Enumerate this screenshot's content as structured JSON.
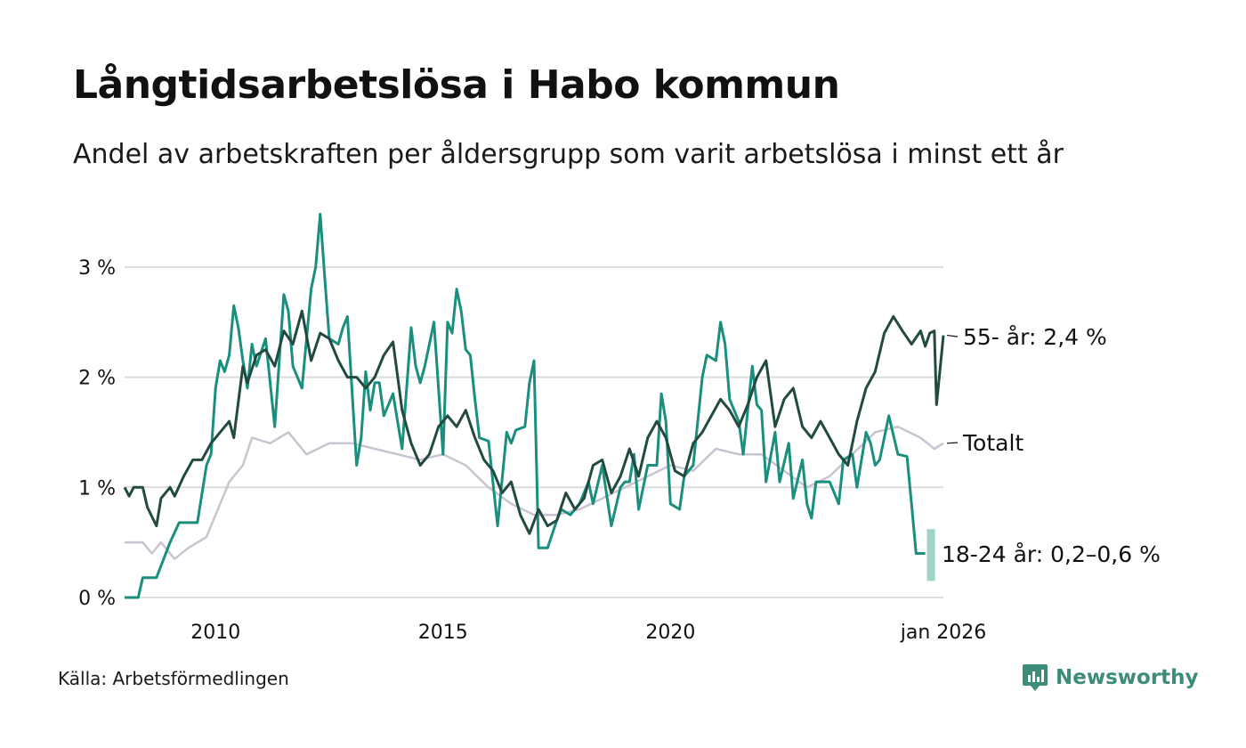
{
  "title": "Långtidsarbetslösa i Habo kommun",
  "subtitle": "Andel av arbetskraften per åldersgrupp som varit arbetslösa i minst ett år",
  "source": "Källa: Arbetsförmedlingen",
  "brand": {
    "name": "Newsworthy",
    "icon": "newsworthy-logo-icon"
  },
  "colors": {
    "dark": "#224a40",
    "teal": "#1a8f7e",
    "grey": "#c9c4d1",
    "band": "#9fd3c8",
    "grid": "#dcdcdc"
  },
  "chart_data": {
    "type": "line",
    "title": "Långtidsarbetslösa i Habo kommun",
    "xlabel": "",
    "ylabel": "",
    "ylim": [
      0,
      3.5
    ],
    "xlim": [
      2008.0,
      2026.0
    ],
    "y_ticks": [
      0,
      1,
      2,
      3
    ],
    "y_tick_labels": [
      "0 %",
      "1 %",
      "2 %",
      "3 %"
    ],
    "x_ticks": [
      2010,
      2015,
      2020,
      2026.0
    ],
    "x_tick_labels": [
      "2010",
      "2015",
      "2020",
      "jan 2026"
    ],
    "grid": true,
    "series": [
      {
        "name": "Totalt",
        "label": "Totalt",
        "color": "#c9c4d1",
        "points": [
          [
            2008.0,
            0.5
          ],
          [
            2008.4,
            0.5
          ],
          [
            2008.6,
            0.4
          ],
          [
            2008.8,
            0.5
          ],
          [
            2009.1,
            0.35
          ],
          [
            2009.4,
            0.45
          ],
          [
            2009.8,
            0.55
          ],
          [
            2010.0,
            0.75
          ],
          [
            2010.3,
            1.05
          ],
          [
            2010.6,
            1.2
          ],
          [
            2010.8,
            1.45
          ],
          [
            2011.2,
            1.4
          ],
          [
            2011.6,
            1.5
          ],
          [
            2012.0,
            1.3
          ],
          [
            2012.5,
            1.4
          ],
          [
            2013.0,
            1.4
          ],
          [
            2013.5,
            1.35
          ],
          [
            2014.0,
            1.3
          ],
          [
            2014.5,
            1.25
          ],
          [
            2015.0,
            1.3
          ],
          [
            2015.5,
            1.2
          ],
          [
            2016.0,
            1.0
          ],
          [
            2016.5,
            0.85
          ],
          [
            2017.0,
            0.75
          ],
          [
            2017.5,
            0.75
          ],
          [
            2018.0,
            0.8
          ],
          [
            2018.5,
            0.9
          ],
          [
            2019.0,
            1.0
          ],
          [
            2019.5,
            1.1
          ],
          [
            2020.0,
            1.2
          ],
          [
            2020.5,
            1.15
          ],
          [
            2021.0,
            1.35
          ],
          [
            2021.5,
            1.3
          ],
          [
            2022.0,
            1.3
          ],
          [
            2022.5,
            1.15
          ],
          [
            2023.0,
            1.0
          ],
          [
            2023.5,
            1.1
          ],
          [
            2024.0,
            1.3
          ],
          [
            2024.5,
            1.5
          ],
          [
            2025.0,
            1.55
          ],
          [
            2025.5,
            1.45
          ],
          [
            2025.8,
            1.35
          ],
          [
            2026.0,
            1.4
          ]
        ]
      },
      {
        "name": "55- år",
        "label": "55- år: 2,4 %",
        "color": "#224a40",
        "points": [
          [
            2008.0,
            1.0
          ],
          [
            2008.1,
            0.92
          ],
          [
            2008.2,
            1.0
          ],
          [
            2008.4,
            1.0
          ],
          [
            2008.5,
            0.82
          ],
          [
            2008.7,
            0.65
          ],
          [
            2008.8,
            0.9
          ],
          [
            2009.0,
            1.0
          ],
          [
            2009.1,
            0.92
          ],
          [
            2009.3,
            1.1
          ],
          [
            2009.5,
            1.25
          ],
          [
            2009.7,
            1.25
          ],
          [
            2009.9,
            1.4
          ],
          [
            2010.1,
            1.5
          ],
          [
            2010.3,
            1.6
          ],
          [
            2010.4,
            1.45
          ],
          [
            2010.6,
            2.1
          ],
          [
            2010.7,
            1.95
          ],
          [
            2010.9,
            2.2
          ],
          [
            2011.1,
            2.25
          ],
          [
            2011.3,
            2.1
          ],
          [
            2011.5,
            2.42
          ],
          [
            2011.7,
            2.3
          ],
          [
            2011.9,
            2.6
          ],
          [
            2012.1,
            2.15
          ],
          [
            2012.3,
            2.4
          ],
          [
            2012.5,
            2.35
          ],
          [
            2012.7,
            2.15
          ],
          [
            2012.9,
            2.0
          ],
          [
            2013.1,
            2.0
          ],
          [
            2013.3,
            1.9
          ],
          [
            2013.5,
            2.0
          ],
          [
            2013.7,
            2.2
          ],
          [
            2013.9,
            2.32
          ],
          [
            2014.1,
            1.7
          ],
          [
            2014.3,
            1.4
          ],
          [
            2014.5,
            1.2
          ],
          [
            2014.7,
            1.3
          ],
          [
            2014.9,
            1.55
          ],
          [
            2015.1,
            1.65
          ],
          [
            2015.3,
            1.55
          ],
          [
            2015.5,
            1.7
          ],
          [
            2015.7,
            1.45
          ],
          [
            2015.9,
            1.25
          ],
          [
            2016.1,
            1.15
          ],
          [
            2016.3,
            0.95
          ],
          [
            2016.5,
            1.05
          ],
          [
            2016.7,
            0.75
          ],
          [
            2016.9,
            0.58
          ],
          [
            2017.1,
            0.8
          ],
          [
            2017.3,
            0.65
          ],
          [
            2017.5,
            0.7
          ],
          [
            2017.7,
            0.95
          ],
          [
            2017.9,
            0.8
          ],
          [
            2018.1,
            0.9
          ],
          [
            2018.3,
            1.2
          ],
          [
            2018.5,
            1.25
          ],
          [
            2018.7,
            0.95
          ],
          [
            2018.9,
            1.1
          ],
          [
            2019.1,
            1.35
          ],
          [
            2019.3,
            1.1
          ],
          [
            2019.5,
            1.45
          ],
          [
            2019.7,
            1.6
          ],
          [
            2019.9,
            1.45
          ],
          [
            2020.1,
            1.15
          ],
          [
            2020.3,
            1.1
          ],
          [
            2020.5,
            1.4
          ],
          [
            2020.7,
            1.5
          ],
          [
            2020.9,
            1.65
          ],
          [
            2021.1,
            1.8
          ],
          [
            2021.3,
            1.7
          ],
          [
            2021.5,
            1.55
          ],
          [
            2021.7,
            1.75
          ],
          [
            2021.9,
            2.0
          ],
          [
            2022.1,
            2.15
          ],
          [
            2022.3,
            1.55
          ],
          [
            2022.5,
            1.8
          ],
          [
            2022.7,
            1.9
          ],
          [
            2022.9,
            1.55
          ],
          [
            2023.1,
            1.45
          ],
          [
            2023.3,
            1.6
          ],
          [
            2023.5,
            1.45
          ],
          [
            2023.7,
            1.3
          ],
          [
            2023.9,
            1.2
          ],
          [
            2024.1,
            1.6
          ],
          [
            2024.3,
            1.9
          ],
          [
            2024.5,
            2.05
          ],
          [
            2024.7,
            2.4
          ],
          [
            2024.9,
            2.55
          ],
          [
            2025.1,
            2.42
          ],
          [
            2025.3,
            2.3
          ],
          [
            2025.5,
            2.42
          ],
          [
            2025.6,
            2.28
          ],
          [
            2025.7,
            2.4
          ],
          [
            2025.8,
            2.42
          ],
          [
            2025.85,
            1.75
          ],
          [
            2026.0,
            2.38
          ]
        ]
      },
      {
        "name": "18-24 år",
        "label": "18-24 år: 0,2–0,6 %",
        "color": "#1a8f7e",
        "band": [
          0.15,
          0.62
        ],
        "points": [
          [
            2008.0,
            0.0
          ],
          [
            2008.3,
            0.0
          ],
          [
            2008.4,
            0.18
          ],
          [
            2008.7,
            0.18
          ],
          [
            2009.0,
            0.5
          ],
          [
            2009.2,
            0.68
          ],
          [
            2009.6,
            0.68
          ],
          [
            2009.8,
            1.2
          ],
          [
            2009.9,
            1.3
          ],
          [
            2010.0,
            1.9
          ],
          [
            2010.1,
            2.15
          ],
          [
            2010.2,
            2.05
          ],
          [
            2010.3,
            2.2
          ],
          [
            2010.4,
            2.65
          ],
          [
            2010.5,
            2.45
          ],
          [
            2010.6,
            2.15
          ],
          [
            2010.7,
            1.9
          ],
          [
            2010.8,
            2.3
          ],
          [
            2010.9,
            2.1
          ],
          [
            2011.1,
            2.35
          ],
          [
            2011.3,
            1.55
          ],
          [
            2011.5,
            2.75
          ],
          [
            2011.6,
            2.6
          ],
          [
            2011.7,
            2.1
          ],
          [
            2011.9,
            1.9
          ],
          [
            2012.1,
            2.8
          ],
          [
            2012.2,
            3.0
          ],
          [
            2012.3,
            3.48
          ],
          [
            2012.4,
            2.9
          ],
          [
            2012.5,
            2.35
          ],
          [
            2012.7,
            2.3
          ],
          [
            2012.8,
            2.45
          ],
          [
            2012.9,
            2.55
          ],
          [
            2013.1,
            1.2
          ],
          [
            2013.2,
            1.45
          ],
          [
            2013.3,
            2.05
          ],
          [
            2013.4,
            1.7
          ],
          [
            2013.5,
            1.95
          ],
          [
            2013.6,
            1.95
          ],
          [
            2013.7,
            1.65
          ],
          [
            2013.9,
            1.85
          ],
          [
            2014.1,
            1.35
          ],
          [
            2014.3,
            2.45
          ],
          [
            2014.4,
            2.1
          ],
          [
            2014.5,
            1.95
          ],
          [
            2014.6,
            2.1
          ],
          [
            2014.8,
            2.5
          ],
          [
            2015.0,
            1.3
          ],
          [
            2015.1,
            2.5
          ],
          [
            2015.2,
            2.4
          ],
          [
            2015.3,
            2.8
          ],
          [
            2015.4,
            2.6
          ],
          [
            2015.5,
            2.25
          ],
          [
            2015.6,
            2.2
          ],
          [
            2015.7,
            1.8
          ],
          [
            2015.8,
            1.45
          ],
          [
            2016.0,
            1.42
          ],
          [
            2016.2,
            0.65
          ],
          [
            2016.4,
            1.5
          ],
          [
            2016.5,
            1.4
          ],
          [
            2016.6,
            1.52
          ],
          [
            2016.8,
            1.55
          ],
          [
            2016.9,
            1.95
          ],
          [
            2017.0,
            2.15
          ],
          [
            2017.1,
            0.45
          ],
          [
            2017.3,
            0.45
          ],
          [
            2017.5,
            0.7
          ],
          [
            2017.6,
            0.8
          ],
          [
            2017.8,
            0.75
          ],
          [
            2017.9,
            0.8
          ],
          [
            2018.0,
            0.85
          ],
          [
            2018.2,
            1.05
          ],
          [
            2018.3,
            0.85
          ],
          [
            2018.5,
            1.2
          ],
          [
            2018.7,
            0.65
          ],
          [
            2018.9,
            1.0
          ],
          [
            2019.0,
            1.05
          ],
          [
            2019.1,
            1.05
          ],
          [
            2019.2,
            1.3
          ],
          [
            2019.3,
            0.8
          ],
          [
            2019.5,
            1.2
          ],
          [
            2019.7,
            1.2
          ],
          [
            2019.8,
            1.85
          ],
          [
            2019.9,
            1.6
          ],
          [
            2020.0,
            0.85
          ],
          [
            2020.2,
            0.8
          ],
          [
            2020.3,
            1.1
          ],
          [
            2020.5,
            1.2
          ],
          [
            2020.7,
            2.0
          ],
          [
            2020.8,
            2.2
          ],
          [
            2021.0,
            2.15
          ],
          [
            2021.1,
            2.5
          ],
          [
            2021.2,
            2.3
          ],
          [
            2021.3,
            1.8
          ],
          [
            2021.5,
            1.6
          ],
          [
            2021.6,
            1.3
          ],
          [
            2021.8,
            2.1
          ],
          [
            2021.9,
            1.75
          ],
          [
            2022.0,
            1.7
          ],
          [
            2022.1,
            1.05
          ],
          [
            2022.3,
            1.5
          ],
          [
            2022.4,
            1.05
          ],
          [
            2022.6,
            1.4
          ],
          [
            2022.7,
            0.9
          ],
          [
            2022.9,
            1.25
          ],
          [
            2023.0,
            0.85
          ],
          [
            2023.1,
            0.72
          ],
          [
            2023.2,
            1.05
          ],
          [
            2023.5,
            1.05
          ],
          [
            2023.7,
            0.85
          ],
          [
            2023.8,
            1.25
          ],
          [
            2024.0,
            1.3
          ],
          [
            2024.1,
            1.0
          ],
          [
            2024.3,
            1.5
          ],
          [
            2024.4,
            1.4
          ],
          [
            2024.5,
            1.2
          ],
          [
            2024.6,
            1.25
          ],
          [
            2024.8,
            1.65
          ],
          [
            2025.0,
            1.3
          ],
          [
            2025.2,
            1.28
          ],
          [
            2025.3,
            0.85
          ],
          [
            2025.4,
            0.4
          ],
          [
            2025.6,
            0.4
          ]
        ]
      }
    ]
  }
}
